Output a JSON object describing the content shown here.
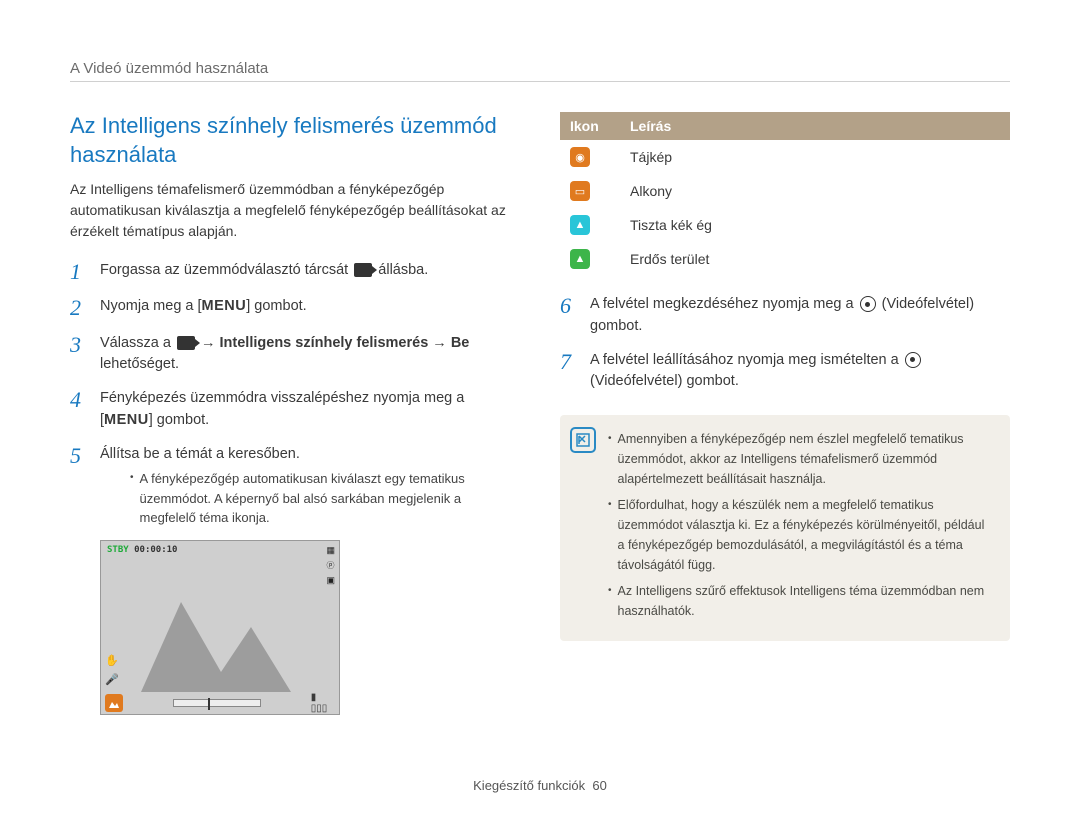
{
  "breadcrumb": "A Videó üzemmód használata",
  "section_title": "Az Intelligens színhely felismerés üzemmód használata",
  "intro": "Az Intelligens témafelismerő üzemmódban a fényképezőgép automatikusan kiválasztja a megfelelő fényképezőgép beállításokat az érzékelt tématípus alapján.",
  "steps_left": [
    {
      "num": "1",
      "html": "Forgassa az üzemmódválasztó tárcsát <span class=\"inline-ic video\" data-name=\"video-mode-icon\" data-interactable=\"false\"></span> állásba."
    },
    {
      "num": "2",
      "html": "Nyomja meg a [<span class=\"menu-label\">MENU</span>] gombot."
    },
    {
      "num": "3",
      "html": "Válassza a <span class=\"inline-ic video\" data-name=\"video-settings-icon\" data-interactable=\"false\"></span> → <span class=\"bold\">Intelligens színhely felismerés</span> → <span class=\"bold\">Be</span> lehetőséget."
    },
    {
      "num": "4",
      "html": "Fényképezés üzemmódra visszalépéshez nyomja meg a [<span class=\"menu-label\">MENU</span>] gombot."
    },
    {
      "num": "5",
      "html": "Állítsa be a témát a keresőben.",
      "sub": "A fényképezőgép automatikusan kiválaszt egy tematikus üzemmódot. A képernyő bal alsó sarkában megjelenik a megfelelő téma ikonja."
    }
  ],
  "preview": {
    "stby": "STBY",
    "time": "00:00:10",
    "mountain_fill": "#9d9d9d"
  },
  "icon_table": {
    "headers": [
      "Ikon",
      "Leírás"
    ],
    "rows": [
      {
        "bg": "#e07a1f",
        "glyph": "◉",
        "glyph_color": "#fff",
        "label": "Tájkép"
      },
      {
        "bg": "#e07a1f",
        "glyph": "▭",
        "glyph_color": "#fff",
        "label": "Alkony"
      },
      {
        "bg": "#29c5d8",
        "glyph": "▲",
        "glyph_color": "#fff",
        "label": "Tiszta kék ég"
      },
      {
        "bg": "#3db54a",
        "glyph": "▲",
        "glyph_color": "#fff",
        "label": "Erdős terület"
      }
    ]
  },
  "steps_right": [
    {
      "num": "6",
      "html": "A felvétel megkezdéséhez nyomja meg a <span class=\"rec-circle\" data-name=\"record-icon\" data-interactable=\"false\"></span> (Videófelvétel) gombot."
    },
    {
      "num": "7",
      "html": "A felvétel leállításához nyomja meg ismételten a <span class=\"rec-circle\" data-name=\"record-icon\" data-interactable=\"false\"></span> (Videófelvétel) gombot."
    }
  ],
  "notes": [
    "Amennyiben a fényképezőgép nem észlel megfelelő tematikus üzemmódot, akkor az Intelligens témafelismerő üzemmód alapértelmezett beállításait használja.",
    "Előfordulhat, hogy a készülék nem a megfelelő tematikus üzemmódot választja ki. Ez a fényképezés körülményeitől, például a fényképezőgép bemozdulásától, a megvilágítástól és a téma távolságától függ.",
    "Az Intelligens szűrő effektusok Intelligens téma üzemmódban nem használhatók."
  ],
  "footer": {
    "label": "Kiegészítő funkciók",
    "page": "60"
  }
}
